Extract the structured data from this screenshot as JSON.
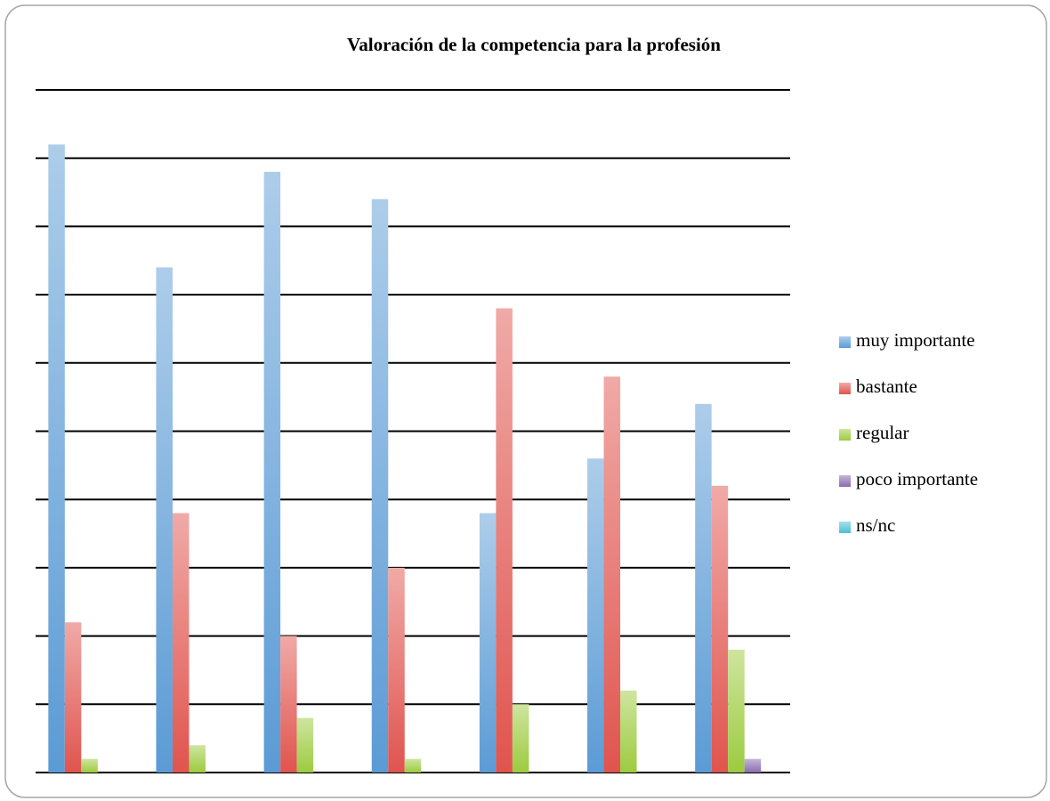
{
  "chart_data": {
    "type": "bar",
    "title": "Valoración de la competencia para la profesión",
    "categories": [
      null,
      null,
      null,
      null,
      null,
      null,
      null
    ],
    "series": [
      {
        "name": "muy importante",
        "color": "#5b9bd5",
        "values": [
          9.2,
          7.4,
          8.8,
          8.4,
          3.8,
          4.6,
          5.4
        ]
      },
      {
        "name": "bastante",
        "color": "#e0544e",
        "values": [
          2.2,
          3.8,
          2.0,
          3.0,
          6.8,
          5.8,
          4.2
        ]
      },
      {
        "name": "regular",
        "color": "#9ccb3f",
        "values": [
          0.2,
          0.4,
          0.8,
          0.2,
          1.0,
          1.2,
          1.8
        ]
      },
      {
        "name": "poco importante",
        "color": "#8a6cb0",
        "values": [
          0,
          0,
          0,
          0,
          0,
          0,
          0.2
        ]
      },
      {
        "name": "ns/nc",
        "color": "#4bc0d3",
        "values": [
          0,
          0,
          0,
          0,
          0,
          0,
          0
        ]
      }
    ],
    "ylim": [
      0,
      10
    ],
    "yticks": [
      0,
      1,
      2,
      3,
      4,
      5,
      6,
      7,
      8,
      9,
      10
    ],
    "grid": true,
    "legend": "right"
  }
}
